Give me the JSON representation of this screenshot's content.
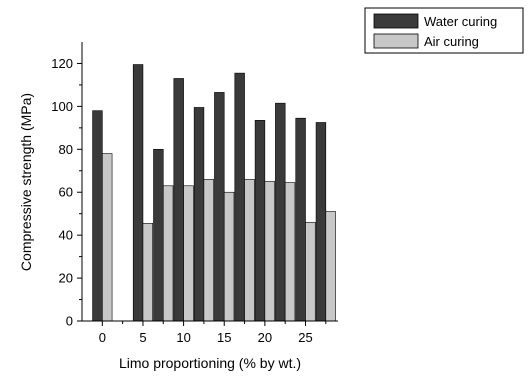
{
  "chart_data": {
    "type": "bar",
    "xlabel": "Limo proportioning (% by wt.)",
    "ylabel": "Compressive strength (MPa)",
    "xlim": [
      -2.5,
      29
    ],
    "ylim": [
      0,
      130
    ],
    "x_ticks": [
      0,
      5,
      10,
      15,
      20,
      25
    ],
    "y_ticks": [
      0,
      20,
      40,
      60,
      80,
      100,
      120
    ],
    "legend_position": "top-right",
    "grid": false,
    "x": [
      0,
      5,
      7.5,
      10,
      12.5,
      15,
      17.5,
      20,
      22.5,
      25,
      27.5
    ],
    "series": [
      {
        "name": "Water curing",
        "color": "#3a3a3a",
        "values": [
          98,
          119.5,
          80,
          113,
          99.5,
          106.5,
          115.5,
          93.5,
          101.5,
          94.5,
          92.5
        ]
      },
      {
        "name": "Air curing",
        "color": "#c8c8c8",
        "values": [
          78,
          45.5,
          63,
          63,
          66,
          60,
          66,
          65,
          64.5,
          46,
          51
        ]
      }
    ]
  }
}
